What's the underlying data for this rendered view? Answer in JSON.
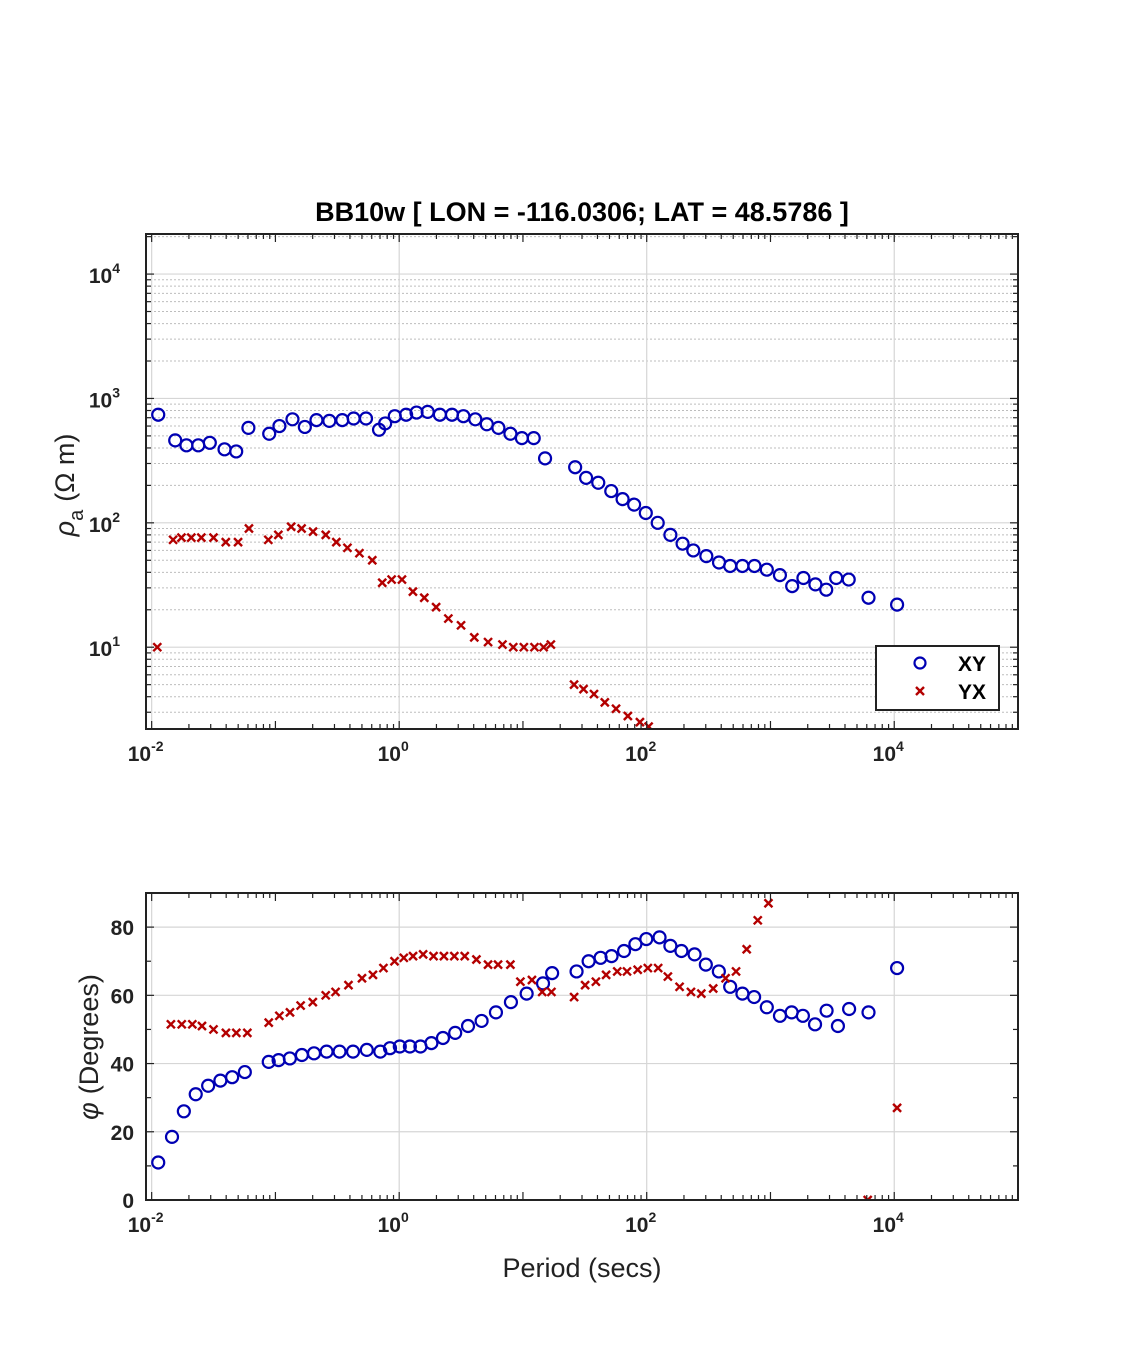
{
  "chart_data": [
    {
      "type": "scatter",
      "title": "BB10w [ LON = -116.0306; LAT = 48.5786 ]",
      "xlabel": "",
      "ylabel_symbol": "ρ",
      "ylabel_subscript": "a",
      "ylabel_unit": "(Ω m)",
      "xscale": "log",
      "yscale": "log",
      "xlim": [
        0.009,
        100000
      ],
      "ylim": [
        2.2,
        21000
      ],
      "xticks": [
        {
          "value": 0.01,
          "base": "10",
          "exp": "-2"
        },
        {
          "value": 1,
          "base": "10",
          "exp": "0"
        },
        {
          "value": 100,
          "base": "10",
          "exp": "2"
        },
        {
          "value": 10000,
          "base": "10",
          "exp": "4"
        }
      ],
      "yticks": [
        {
          "value": 10,
          "base": "10",
          "exp": "1"
        },
        {
          "value": 100,
          "base": "10",
          "exp": "2"
        },
        {
          "value": 1000,
          "base": "10",
          "exp": "3"
        },
        {
          "value": 10000,
          "base": "10",
          "exp": "4"
        }
      ],
      "grid": true,
      "legend_position": "bottom-right",
      "series": [
        {
          "name": "XY",
          "marker": "circle",
          "color": "#0000b3",
          "x": [
            0.0113,
            0.0155,
            0.0191,
            0.0238,
            0.0295,
            0.0388,
            0.0482,
            0.0605,
            0.0891,
            0.1077,
            0.1373,
            0.1729,
            0.2146,
            0.2726,
            0.3468,
            0.4287,
            0.5394,
            0.6873,
            0.7705,
            0.9214,
            1.1377,
            1.3809,
            1.6989,
            2.1319,
            2.6705,
            3.3031,
            4.1202,
            5.1021,
            6.3347,
            7.9201,
            9.8043,
            12.2226,
            15.0895,
            26.4098,
            32.3838,
            40.6047,
            51.7058,
            63.8315,
            79.1302,
            98.3051,
            122.7211,
            155.3564,
            194.9032,
            237.8659,
            303.1787,
            383.9061,
            472.4262,
            593.2575,
            742.4002,
            934.0109,
            1192.0268,
            1497.1616,
            1846.2004,
            2307.2634,
            2821.7089,
            3395.3218,
            4287.1218,
            6196.1074,
            10545.6094
          ],
          "y": [
            740,
            460,
            420,
            420,
            440,
            390,
            375,
            580,
            520,
            600,
            680,
            590,
            670,
            660,
            670,
            690,
            690,
            560,
            630,
            720,
            740,
            770,
            780,
            740,
            740,
            720,
            680,
            620,
            580,
            520,
            480,
            480,
            330,
            280,
            230,
            210,
            180,
            155,
            140,
            120,
            100,
            80,
            68,
            60,
            54,
            48,
            45,
            45,
            45,
            42,
            38,
            31,
            36,
            32,
            29,
            36,
            35,
            25,
            22
          ]
        },
        {
          "name": "YX",
          "marker": "x",
          "color": "#b30000",
          "x": [
            0.0111,
            0.0149,
            0.0174,
            0.0209,
            0.0252,
            0.0316,
            0.0397,
            0.0499,
            0.0611,
            0.0876,
            0.1056,
            0.134,
            0.1627,
            0.2013,
            0.255,
            0.3105,
            0.3818,
            0.4773,
            0.6061,
            0.7296,
            0.8686,
            1.053,
            1.2911,
            1.5954,
            1.9875,
            2.4952,
            3.1604,
            4.0442,
            5.2243,
            6.8311,
            8.3513,
            10.1694,
            12.3919,
            14.6863,
            16.8045,
            25.8811,
            30.8604,
            37.4919,
            45.8599,
            56.5101,
            70.4133,
            88.1306,
            103.6434
          ],
          "y": [
            10,
            73,
            76,
            76,
            76,
            76,
            70,
            70,
            90,
            73,
            80,
            93,
            90,
            85,
            80,
            70,
            63,
            57,
            50,
            33,
            35,
            35,
            28,
            25,
            21,
            17,
            15,
            12,
            11,
            10.5,
            10,
            10,
            10,
            10,
            10.5,
            5,
            4.6,
            4.2,
            3.6,
            3.2,
            2.8,
            2.5,
            2.3
          ]
        }
      ]
    },
    {
      "type": "scatter",
      "title": "",
      "xlabel": "Period (secs)",
      "ylabel_symbol": "φ",
      "ylabel_unit": "(Degrees)",
      "xscale": "log",
      "yscale": "linear",
      "xlim": [
        0.009,
        100000
      ],
      "ylim": [
        0,
        90
      ],
      "xticks": [
        {
          "value": 0.01,
          "base": "10",
          "exp": "-2"
        },
        {
          "value": 1,
          "base": "10",
          "exp": "0"
        },
        {
          "value": 100,
          "base": "10",
          "exp": "2"
        },
        {
          "value": 10000,
          "base": "10",
          "exp": "4"
        }
      ],
      "yticks": [
        {
          "value": 0,
          "label": "0"
        },
        {
          "value": 20,
          "label": "20"
        },
        {
          "value": 40,
          "label": "40"
        },
        {
          "value": 60,
          "label": "60"
        },
        {
          "value": 80,
          "label": "80"
        }
      ],
      "grid": true,
      "series": [
        {
          "name": "XY",
          "marker": "circle",
          "color": "#0000b3",
          "x": [
            0.0113,
            0.0146,
            0.0182,
            0.0227,
            0.0286,
            0.0359,
            0.0447,
            0.0566,
            0.0883,
            0.1061,
            0.1308,
            0.1636,
            0.205,
            0.2591,
            0.3296,
            0.4237,
            0.5474,
            0.7034,
            0.8429,
            1.0114,
            1.2206,
            1.4855,
            1.8211,
            2.2574,
            2.8355,
            3.5992,
            4.6346,
            6.0506,
            7.9951,
            10.7124,
            14.527,
            17.2081,
            27.1123,
            33.9276,
            42.3982,
            51.9951,
            65.5811,
            81.0082,
            99.2294,
            126.9416,
            155.3564,
            190.8416,
            243.6186,
            300.4208,
            382.6637,
            472.4262,
            593.2575,
            737.6251,
            934.0109,
            1193.1102,
            1483.2117,
            1827.6716,
            2291.0102,
            2840.2924,
            3506.7357,
            4319.0637,
            6196.1074,
            10545.6094
          ],
          "y": [
            11,
            18.5,
            26,
            31,
            33.5,
            35,
            36,
            37.5,
            40.5,
            41,
            41.5,
            42.5,
            43,
            43.5,
            43.5,
            43.5,
            44,
            43.5,
            44.5,
            45,
            45,
            45,
            46,
            47.5,
            49,
            51,
            52.5,
            55,
            58,
            60.5,
            63.5,
            66.5,
            67,
            70,
            71,
            71.5,
            73,
            75,
            76.5,
            77,
            74.5,
            73,
            72,
            69,
            67,
            62.5,
            60.5,
            59.5,
            56.5,
            54,
            55,
            54,
            51.5,
            55.5,
            51,
            56,
            55,
            68
          ]
        },
        {
          "name": "YX",
          "marker": "x",
          "color": "#b30000",
          "x": [
            0.0143,
            0.0175,
            0.0213,
            0.0255,
            0.0316,
            0.0398,
            0.0483,
            0.0593,
            0.0883,
            0.1076,
            0.1311,
            0.1598,
            0.2005,
            0.2549,
            0.3061,
            0.3892,
            0.5006,
            0.6137,
            0.7459,
            0.9165,
            1.0891,
            1.2942,
            1.5613,
            1.8944,
            2.2986,
            2.7892,
            3.3844,
            4.2076,
            5.2231,
            6.2927,
            7.9148,
            9.5359,
            11.8223,
            14.3009,
            16.9863,
            25.9022,
            31.8009,
            38.8418,
            46.9837,
            57.7854,
            69.2864,
            84.5734,
            102.1054,
            123.7218,
            148.2369,
            184.3246,
            227.7506,
            276.2081,
            344.5398,
            433.6224,
            526.8553,
            642.3224,
            789.1436,
            962.9123,
            6103.9621,
            10545.6094
          ],
          "y": [
            51.5,
            51.5,
            51.5,
            51,
            50,
            49,
            49,
            49,
            52,
            54,
            55,
            57,
            58,
            60,
            61,
            63,
            65,
            66,
            68,
            70,
            71,
            71.5,
            72,
            71.5,
            71.5,
            71.5,
            71.5,
            70.5,
            69,
            69,
            69,
            64,
            64.5,
            61,
            61,
            59.5,
            63,
            64,
            66,
            67,
            67,
            67.5,
            68,
            68,
            65.5,
            62.5,
            61,
            60.5,
            62,
            65,
            67,
            73.5,
            82,
            87,
            0,
            27
          ]
        }
      ]
    }
  ]
}
